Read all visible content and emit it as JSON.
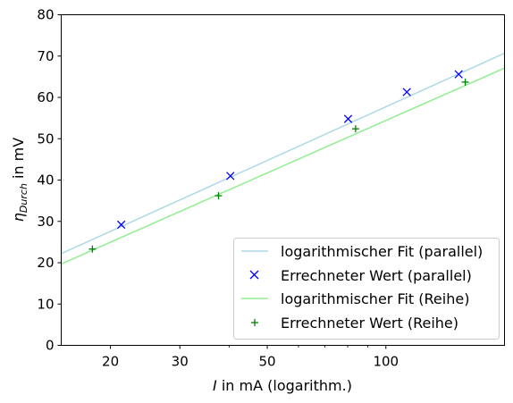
{
  "chart_data": {
    "type": "line",
    "x_scale": "log",
    "xlim": [
      15,
      200
    ],
    "ylim": [
      0,
      80
    ],
    "xlabel_var": "I",
    "xlabel_rest": " in mA (logarithm.)",
    "ylabel_var": "η",
    "ylabel_sub": "Durch",
    "ylabel_rest": " in mV",
    "x_ticks": [
      20,
      30,
      50,
      100
    ],
    "x_tick_labels": [
      "20",
      "30",
      "50",
      "100"
    ],
    "y_ticks": [
      0,
      10,
      20,
      30,
      40,
      50,
      60,
      70,
      80
    ],
    "y_tick_labels": [
      "0",
      "10",
      "20",
      "30",
      "40",
      "50",
      "60",
      "70",
      "80"
    ],
    "legend_position": "lower-right",
    "series": [
      {
        "name": "logarithmischer Fit (parallel)",
        "kind": "line",
        "color": "#add8e6",
        "x": [
          15,
          200
        ],
        "y": [
          22.2,
          70.7
        ]
      },
      {
        "name": "Errechneter Wert (parallel)",
        "kind": "marker-x",
        "color": "#0000ff",
        "x": [
          21.3,
          40.3,
          80.2,
          113.0,
          153.0
        ],
        "y": [
          29.2,
          41.0,
          54.8,
          61.3,
          65.6
        ]
      },
      {
        "name": "logarithmischer Fit (Reihe)",
        "kind": "line",
        "color": "#90ee90",
        "x": [
          15,
          200
        ],
        "y": [
          19.7,
          67.1
        ]
      },
      {
        "name": "Errechneter Wert (Reihe)",
        "kind": "marker-plus",
        "color": "#008000",
        "x": [
          18.0,
          37.6,
          83.8,
          159.0
        ],
        "y": [
          23.3,
          36.2,
          52.4,
          63.7
        ]
      }
    ]
  }
}
